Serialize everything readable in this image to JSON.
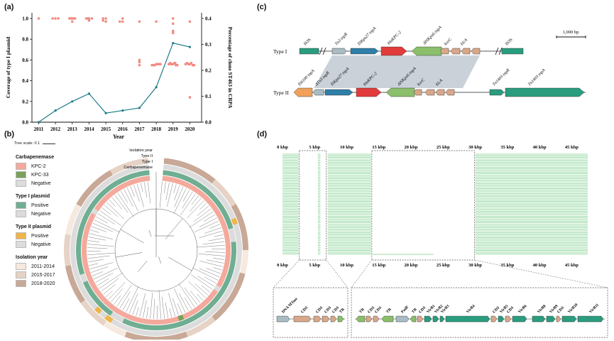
{
  "panel_labels": {
    "a": "(a)",
    "b": "(b)",
    "c": "(c)",
    "d": "(d)"
  },
  "colors": {
    "plasmid_dots": "#f08c84",
    "clone_line": "#1f7a8c",
    "kpc2": "#f4a99c",
    "kpc33": "#7aa05a",
    "negative": "#dcdcdc",
    "positive_green": "#6fae92",
    "positive_orange": "#efb54a",
    "y1": "#f6e9df",
    "y2": "#e6d3c6",
    "y3": "#c8a896",
    "gene_teal": "#2a9d7f",
    "gene_blue": "#2f7fa8",
    "gene_red": "#e23b3b",
    "gene_green": "#8bbf6b",
    "gene_tan": "#d9a88a",
    "gene_grey": "#a9bcc4",
    "gene_orange": "#f0a05a",
    "shade": "#b8c2cc",
    "blast_green": "#7ccf8a"
  },
  "chart_data": {
    "type": "scatter+line",
    "xlabel": "Year",
    "ylabel_left": "Coverage of type I plasmid",
    "ylabel_right": "Percentage of clone ST463 in CRPA",
    "x_ticks": [
      "2011",
      "2012",
      "2013",
      "2014",
      "2015",
      "2016",
      "2017",
      "2018",
      "2019",
      "2020"
    ],
    "y_left_ticks": [
      "0.0",
      "0.2",
      "0.4",
      "0.6",
      "0.8",
      "1.0"
    ],
    "y_right_ticks": [
      "0.0",
      "0.1",
      "0.2",
      "0.3",
      "0.4"
    ],
    "ylim_left": [
      0,
      1.0
    ],
    "ylim_right": [
      0,
      0.4
    ],
    "series": [
      {
        "kind": "scatter",
        "axis": "left",
        "points": [
          [
            2011,
            1.0
          ],
          [
            2012,
            1.0
          ],
          [
            2012,
            1.0
          ],
          [
            2012,
            1.0
          ],
          [
            2013,
            1.0
          ],
          [
            2013,
            1.0
          ],
          [
            2013,
            1.0
          ],
          [
            2013,
            0.97
          ],
          [
            2013,
            1.0
          ],
          [
            2013,
            1.0
          ],
          [
            2014,
            1.0
          ],
          [
            2014,
            1.0
          ],
          [
            2014,
            1.0
          ],
          [
            2014,
            1.0
          ],
          [
            2014,
            0.98
          ],
          [
            2015,
            1.0
          ],
          [
            2015,
            0.97
          ],
          [
            2015,
            1.0
          ],
          [
            2015,
            0.98
          ],
          [
            2016,
            0.97
          ],
          [
            2016,
            1.0
          ],
          [
            2016,
            0.97
          ],
          [
            2017,
            0.97
          ],
          [
            2017,
            0.6
          ],
          [
            2017,
            0.58
          ],
          [
            2017,
            0.55
          ],
          [
            2018,
            0.97
          ],
          [
            2018,
            0.56
          ],
          [
            2018,
            0.55
          ],
          [
            2018,
            0.56
          ],
          [
            2018,
            0.55
          ],
          [
            2018,
            0.56
          ],
          [
            2018,
            0.55
          ],
          [
            2018,
            0.56
          ],
          [
            2019,
            1.0
          ],
          [
            2019,
            0.95
          ],
          [
            2019,
            0.88
          ],
          [
            2019,
            0.86
          ],
          [
            2019,
            0.56
          ],
          [
            2019,
            0.57
          ],
          [
            2019,
            0.55
          ],
          [
            2019,
            0.56
          ],
          [
            2019,
            0.57
          ],
          [
            2019,
            0.56
          ],
          [
            2019,
            0.55
          ],
          [
            2019,
            0.56
          ],
          [
            2019,
            0.57
          ],
          [
            2020,
            0.97
          ],
          [
            2020,
            0.56
          ],
          [
            2020,
            0.57
          ],
          [
            2020,
            0.55
          ],
          [
            2020,
            0.56
          ],
          [
            2020,
            0.57
          ],
          [
            2020,
            0.56
          ],
          [
            2020,
            0.55
          ],
          [
            2020,
            0.24
          ]
        ]
      },
      {
        "kind": "line",
        "axis": "right",
        "x": [
          2011,
          2012,
          2013,
          2014,
          2015,
          2016,
          2017,
          2018,
          2019,
          2020
        ],
        "y": [
          0.0,
          0.045,
          0.08,
          0.11,
          0.035,
          0.045,
          0.055,
          0.135,
          0.305,
          0.29
        ]
      }
    ]
  },
  "tree": {
    "tree_scale": "Tree scale: 0.1",
    "ring_labels": [
      "Isolation year",
      "Type II",
      "Type I",
      "Carbapenemase"
    ],
    "legend": [
      {
        "title": "Carbapenemase",
        "items": [
          {
            "label": "KPC-2",
            "color": "#f4a99c"
          },
          {
            "label": "KPC-33",
            "color": "#7aa05a"
          },
          {
            "label": "Negative",
            "color": "#dcdcdc"
          }
        ]
      },
      {
        "title": "Type I plasmid",
        "items": [
          {
            "label": "Positive",
            "color": "#6fae92"
          },
          {
            "label": "Negative",
            "color": "#dcdcdc"
          }
        ]
      },
      {
        "title": "Type II plasmid",
        "items": [
          {
            "label": "Positive",
            "color": "#efb54a"
          },
          {
            "label": "Negative",
            "color": "#dcdcdc"
          }
        ]
      },
      {
        "title": "Isolation year",
        "items": [
          {
            "label": "2011-2014",
            "color": "#f6e9df"
          },
          {
            "label": "2015-2017",
            "color": "#e6d3c6"
          },
          {
            "label": "2018-2020",
            "color": "#c8a896"
          }
        ]
      }
    ]
  },
  "plasmid_map": {
    "scale": "1,000 bp",
    "type1": "Type I",
    "type2": "Type II",
    "genes_type1": [
      "IS26",
      "Tn3 tnpR",
      "ISKpn27 tnpA",
      "blaKPC-2",
      "ΔISKpn6 tnpA",
      "korC",
      "klcA",
      "IS26"
    ],
    "genes_type2": [
      "IS6100 tnpA",
      "ΔTn3 tnpR",
      "ISKpn27 tnpA",
      "blaKPC-2",
      "ΔISKpn6 tnpA",
      "korC",
      "klcA",
      "Tn1403 tnpR",
      "Tn1403 tnpA"
    ]
  },
  "blast": {
    "axis_ticks": [
      "0 kbp",
      "5 kbp",
      "10 kbp",
      "15 kbp",
      "20 kbp",
      "25 kbp",
      "30 kbp",
      "35 kbp",
      "40 kbp",
      "45 kbp"
    ],
    "genes_left": [
      "DNA MTase",
      "CDS",
      "CDS",
      "CDS",
      "CDS",
      "TR"
    ],
    "genes_right": [
      "TR",
      "CDS",
      "CDS",
      "TR",
      "PadF",
      "TR",
      "CDS",
      "VirB1",
      "VirB2",
      "VirB3",
      "VirB4",
      "CDS",
      "VirB5",
      "CDS",
      "VirB6",
      "VirB8",
      "VirB9",
      "CDS",
      "VirB10",
      "VirB11"
    ]
  }
}
